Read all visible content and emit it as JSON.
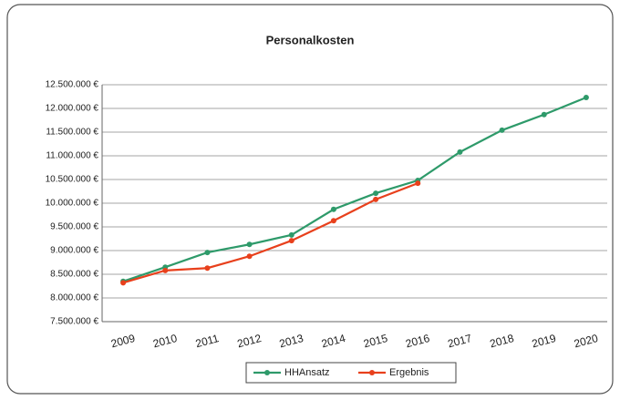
{
  "chart_data": {
    "type": "line",
    "title": "Personalkosten",
    "categories": [
      "2009",
      "2010",
      "2011",
      "2012",
      "2013",
      "2014",
      "2015",
      "2016",
      "2017",
      "2018",
      "2019",
      "2020"
    ],
    "series": [
      {
        "name": "HHAnsatz",
        "color": "#2e9a6a",
        "values": [
          8350000,
          8650000,
          8960000,
          9130000,
          9330000,
          9870000,
          10210000,
          10480000,
          11080000,
          11540000,
          11870000,
          12230000
        ]
      },
      {
        "name": "Ergebnis",
        "color": "#e8401c",
        "values": [
          8320000,
          8580000,
          8630000,
          8880000,
          9210000,
          9630000,
          10080000,
          10420000,
          null,
          null,
          null,
          null
        ]
      }
    ],
    "ylim": [
      7500000,
      12500000
    ],
    "yticks": [
      {
        "value": 7500000,
        "label": "7.500.000 €"
      },
      {
        "value": 8000000,
        "label": "8.000.000 €"
      },
      {
        "value": 8500000,
        "label": "8.500.000 €"
      },
      {
        "value": 9000000,
        "label": "9.000.000 €"
      },
      {
        "value": 9500000,
        "label": "9.500.000 €"
      },
      {
        "value": 10000000,
        "label": "10.000.000 €"
      },
      {
        "value": 10500000,
        "label": "10.500.000 €"
      },
      {
        "value": 11000000,
        "label": "11.000.000 €"
      },
      {
        "value": 11500000,
        "label": "11.500.000 €"
      },
      {
        "value": 12000000,
        "label": "12.000.000 €"
      },
      {
        "value": 12500000,
        "label": "12.500.000 €"
      }
    ],
    "grid": true,
    "legend": "bottom"
  }
}
